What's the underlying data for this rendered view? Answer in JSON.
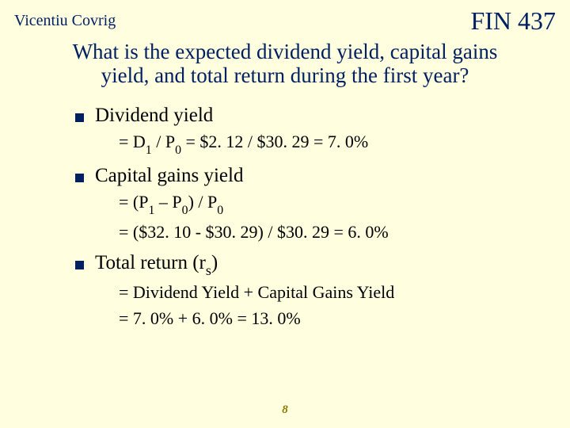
{
  "header": {
    "author": "Vicentiu Covrig",
    "course": "FIN 437"
  },
  "title": "What is the expected dividend yield, capital gains yield, and total return during the first year?",
  "items": [
    {
      "label": "Dividend yield",
      "formulas": [
        "= D₁ / P₀ = $2. 12 / $30. 29 = 7. 0%"
      ]
    },
    {
      "label": "Capital gains yield",
      "formulas": [
        "= (P₁ – P₀) / P₀",
        "= ($32. 10 - $30. 29) / $30. 29 = 6. 0%"
      ]
    },
    {
      "label": "Total return (rₛ)",
      "formulas": [
        "= Dividend Yield + Capital Gains Yield",
        "= 7. 0% + 6. 0% = 13. 0%"
      ]
    }
  ],
  "pageNumber": "8",
  "styling": {
    "background": "#ffffe0",
    "heading_color": "#002060",
    "text_color": "#000000",
    "bullet_color": "#002060",
    "page_number_color": "#8a7a00",
    "title_fontsize": 27,
    "bullet_text_fontsize": 25,
    "formula_fontsize": 22,
    "author_fontsize": 20,
    "course_fontsize": 32
  }
}
